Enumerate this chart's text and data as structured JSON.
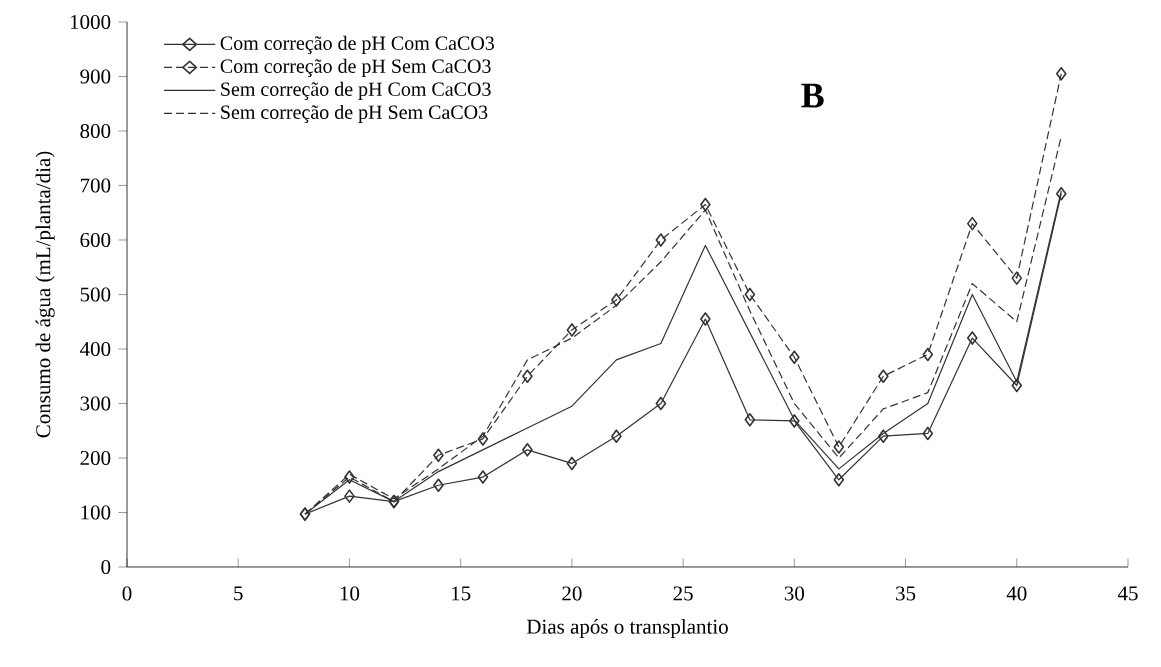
{
  "chart_data": {
    "type": "line",
    "xlabel": "Dias após o transplantio",
    "ylabel": "Consumo de água (mL/planta/dia)",
    "annotations": [
      "B"
    ],
    "x": [
      8,
      10,
      12,
      14,
      16,
      18,
      20,
      22,
      24,
      26,
      28,
      30,
      32,
      34,
      36,
      38,
      40,
      42
    ],
    "series": [
      {
        "name": "Com correção de pH Com CaCO3",
        "color": "#333333",
        "marker": "diamond",
        "line_style": "solid",
        "values": [
          97,
          130,
          120,
          150,
          165,
          215,
          190,
          240,
          300,
          455,
          270,
          268,
          160,
          240,
          245,
          420,
          333,
          685
        ]
      },
      {
        "name": "Com correção de pH Sem CaCO3",
        "color": "#333333",
        "marker": "diamond",
        "line_style": "dashed",
        "values": [
          97,
          165,
          120,
          205,
          235,
          350,
          435,
          490,
          600,
          665,
          500,
          385,
          220,
          350,
          390,
          630,
          530,
          905
        ]
      },
      {
        "name": "Sem correção de pH Com CaCO3",
        "color": "#333333",
        "marker": "none",
        "line_style": "solid",
        "values": [
          97,
          160,
          120,
          175,
          215,
          255,
          295,
          380,
          410,
          590,
          430,
          270,
          180,
          245,
          300,
          500,
          340,
          690
        ]
      },
      {
        "name": "Sem correção de pH Sem CaCO3",
        "color": "#333333",
        "marker": "none",
        "line_style": "dashed",
        "values": [
          97,
          170,
          125,
          180,
          240,
          380,
          420,
          480,
          560,
          655,
          470,
          300,
          200,
          290,
          320,
          520,
          450,
          790
        ]
      }
    ],
    "xlim": [
      0,
      45
    ],
    "xticks": [
      0,
      5,
      10,
      15,
      20,
      25,
      30,
      35,
      40,
      45
    ],
    "ylim": [
      0,
      1000
    ],
    "yticks": [
      0,
      100,
      200,
      300,
      400,
      500,
      600,
      700,
      800,
      900,
      1000
    ],
    "grid": false,
    "legend": "top left"
  }
}
